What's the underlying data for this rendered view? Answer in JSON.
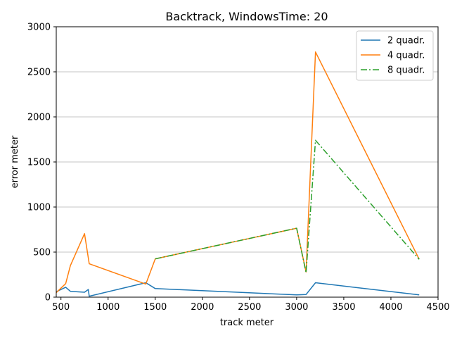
{
  "chart_data": {
    "type": "line",
    "title": "Backtrack, WindowsTime: 20",
    "xlabel": "track meter",
    "ylabel": "error meter",
    "xlim": [
      450,
      4500
    ],
    "ylim": [
      0,
      3000
    ],
    "xticks": [
      500,
      1000,
      1500,
      2000,
      2500,
      3000,
      3500,
      4000,
      4500
    ],
    "yticks": [
      0,
      500,
      1000,
      1500,
      2000,
      2500,
      3000
    ],
    "grid": "horizontal",
    "legend_position": "top-right",
    "series": [
      {
        "name": "2 quadr.",
        "color": "#1f77b4",
        "style": "solid",
        "x": [
          450,
          550,
          600,
          750,
          790,
          800,
          1400,
          1500,
          3000,
          3100,
          3200,
          4300
        ],
        "y": [
          60,
          110,
          65,
          55,
          85,
          10,
          160,
          95,
          25,
          30,
          160,
          25
        ]
      },
      {
        "name": "4 quadr.",
        "color": "#ff7f0e",
        "style": "solid",
        "x": [
          450,
          550,
          600,
          750,
          800,
          1400,
          1500,
          3000,
          3100,
          3200,
          4300
        ],
        "y": [
          50,
          150,
          350,
          705,
          370,
          145,
          425,
          765,
          280,
          2720,
          420
        ]
      },
      {
        "name": "8 quadr.",
        "color": "#2ca02c",
        "style": "dashdot",
        "x": [
          1500,
          3000,
          3100,
          3200,
          4300
        ],
        "y": [
          425,
          765,
          270,
          1740,
          420
        ]
      }
    ]
  }
}
